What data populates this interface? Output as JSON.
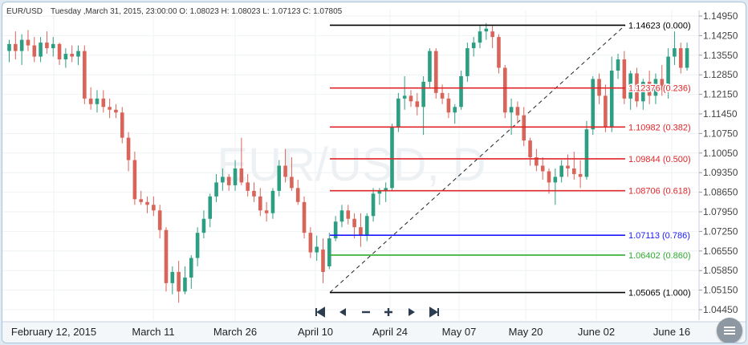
{
  "header": {
    "symbol": "EUR/USD",
    "info": "Tuesday ,March 31, 2015, 23:00:00",
    "o_label": "O:",
    "o_value": "1.08023",
    "h_label": "H:",
    "h_value": "1.08023",
    "l_label": "L:",
    "l_value": "1.07123",
    "c_label": "C:",
    "c_value": "1.07805"
  },
  "watermark": "EUR/USD, D",
  "toolbar": [
    {
      "name": "first-bar-button",
      "glyph": "⏮"
    },
    {
      "name": "scroll-left-button",
      "glyph": "◀"
    },
    {
      "name": "zoom-out-button",
      "glyph": "−"
    },
    {
      "name": "zoom-in-button",
      "glyph": "+"
    },
    {
      "name": "scroll-right-button",
      "glyph": "▶"
    },
    {
      "name": "last-bar-button",
      "glyph": "⏭"
    }
  ],
  "colors": {
    "up": "#2e9e82",
    "down": "#d9655a",
    "fib_mid": "#e0262a",
    "fib_786": "#1a1aff",
    "fib_860": "#2eab2e",
    "fib_edge": "#000000",
    "grid": "#eef2f6",
    "axis_text": "#444444"
  },
  "chart_data": {
    "type": "candlestick",
    "symbol": "EUR/USD",
    "timeframe": "D",
    "ylim": [
      1.0415,
      1.1515
    ],
    "y_ticks": [
      "1.14950",
      "1.14250",
      "1.13550",
      "1.12850",
      "1.12150",
      "1.11450",
      "1.10750",
      "1.10050",
      "1.09350",
      "1.08650",
      "1.07950",
      "1.07250",
      "1.06550",
      "1.05850",
      "1.05150",
      "1.04450"
    ],
    "x_ticks": [
      "February 12, 2015",
      "March 11",
      "March 26",
      "April 10",
      "April 24",
      "May 07",
      "May 20",
      "June 02",
      "June 16"
    ],
    "fibonacci": [
      {
        "price": 1.14623,
        "label": "1.14623 (0.000)",
        "ratio": 0
      },
      {
        "price": 1.12376,
        "label": "1.12376 (0.236)",
        "ratio": 0.236
      },
      {
        "price": 1.10982,
        "label": "1.10982 (0.382)",
        "ratio": 0.382
      },
      {
        "price": 1.09844,
        "label": "1.09844 (0.500)",
        "ratio": 0.5
      },
      {
        "price": 1.08706,
        "label": "1.08706 (0.618)",
        "ratio": 0.618
      },
      {
        "price": 1.07113,
        "label": "1.07113 (0.786)",
        "ratio": 0.786
      },
      {
        "price": 1.06402,
        "label": "1.06402 (0.860)",
        "ratio": 0.86
      },
      {
        "price": 1.05065,
        "label": "1.05065 (1.000)",
        "ratio": 1
      }
    ],
    "fib_trendline": {
      "from_price": 1.05065,
      "to_price": 1.14623
    },
    "candles": [
      [
        1.137,
        1.141,
        1.133,
        1.1395
      ],
      [
        1.1395,
        1.144,
        1.134,
        1.137
      ],
      [
        1.137,
        1.143,
        1.132,
        1.141
      ],
      [
        1.141,
        1.1445,
        1.137,
        1.139
      ],
      [
        1.139,
        1.142,
        1.133,
        1.135
      ],
      [
        1.135,
        1.142,
        1.133,
        1.14
      ],
      [
        1.14,
        1.144,
        1.136,
        1.138
      ],
      [
        1.138,
        1.142,
        1.135,
        1.1395
      ],
      [
        1.1395,
        1.14,
        1.132,
        1.134
      ],
      [
        1.134,
        1.138,
        1.131,
        1.136
      ],
      [
        1.136,
        1.139,
        1.133,
        1.135
      ],
      [
        1.135,
        1.139,
        1.132,
        1.137
      ],
      [
        1.137,
        1.139,
        1.118,
        1.12
      ],
      [
        1.12,
        1.124,
        1.116,
        1.118
      ],
      [
        1.118,
        1.123,
        1.115,
        1.12
      ],
      [
        1.12,
        1.123,
        1.115,
        1.117
      ],
      [
        1.117,
        1.12,
        1.113,
        1.116
      ],
      [
        1.116,
        1.118,
        1.113,
        1.115
      ],
      [
        1.115,
        1.117,
        1.104,
        1.106
      ],
      [
        1.106,
        1.108,
        1.094,
        1.098
      ],
      [
        1.098,
        1.101,
        1.082,
        1.084
      ],
      [
        1.084,
        1.087,
        1.082,
        1.083
      ],
      [
        1.083,
        1.085,
        1.079,
        1.082
      ],
      [
        1.082,
        1.085,
        1.078,
        1.08
      ],
      [
        1.08,
        1.082,
        1.07,
        1.073
      ],
      [
        1.073,
        1.074,
        1.051,
        1.054
      ],
      [
        1.054,
        1.06,
        1.05,
        1.058
      ],
      [
        1.058,
        1.062,
        1.047,
        1.051
      ],
      [
        1.051,
        1.06,
        1.05,
        1.056
      ],
      [
        1.056,
        1.064,
        1.052,
        1.063
      ],
      [
        1.063,
        1.074,
        1.06,
        1.072
      ],
      [
        1.072,
        1.08,
        1.07,
        1.077
      ],
      [
        1.077,
        1.086,
        1.074,
        1.085
      ],
      [
        1.085,
        1.093,
        1.083,
        1.09
      ],
      [
        1.09,
        1.095,
        1.087,
        1.092
      ],
      [
        1.092,
        1.093,
        1.087,
        1.089
      ],
      [
        1.089,
        1.098,
        1.087,
        1.095
      ],
      [
        1.095,
        1.106,
        1.089,
        1.09
      ],
      [
        1.09,
        1.093,
        1.085,
        1.087
      ],
      [
        1.087,
        1.09,
        1.083,
        1.085
      ],
      [
        1.085,
        1.088,
        1.078,
        1.08
      ],
      [
        1.08,
        1.083,
        1.076,
        1.079
      ],
      [
        1.079,
        1.088,
        1.077,
        1.087
      ],
      [
        1.087,
        1.098,
        1.085,
        1.096
      ],
      [
        1.096,
        1.102,
        1.09,
        1.092
      ],
      [
        1.092,
        1.099,
        1.087,
        1.088
      ],
      [
        1.088,
        1.091,
        1.082,
        1.083
      ],
      [
        1.083,
        1.085,
        1.07,
        1.072
      ],
      [
        1.072,
        1.074,
        1.063,
        1.065
      ],
      [
        1.065,
        1.071,
        1.062,
        1.067
      ],
      [
        1.066,
        1.07,
        1.054,
        1.058
      ],
      [
        1.06,
        1.072,
        1.059,
        1.07
      ],
      [
        1.07,
        1.078,
        1.069,
        1.076
      ],
      [
        1.076,
        1.082,
        1.074,
        1.08
      ],
      [
        1.08,
        1.082,
        1.075,
        1.077
      ],
      [
        1.077,
        1.079,
        1.07,
        1.074
      ],
      [
        1.074,
        1.079,
        1.067,
        1.071
      ],
      [
        1.071,
        1.079,
        1.069,
        1.078
      ],
      [
        1.078,
        1.088,
        1.076,
        1.086
      ],
      [
        1.086,
        1.088,
        1.082,
        1.087
      ],
      [
        1.087,
        1.09,
        1.083,
        1.088
      ],
      [
        1.088,
        1.111,
        1.087,
        1.11
      ],
      [
        1.11,
        1.122,
        1.108,
        1.12
      ],
      [
        1.12,
        1.128,
        1.116,
        1.121
      ],
      [
        1.121,
        1.123,
        1.117,
        1.119
      ],
      [
        1.119,
        1.122,
        1.114,
        1.117
      ],
      [
        1.117,
        1.128,
        1.107,
        1.126
      ],
      [
        1.126,
        1.138,
        1.124,
        1.137
      ],
      [
        1.137,
        1.138,
        1.12,
        1.122
      ],
      [
        1.122,
        1.125,
        1.118,
        1.12
      ],
      [
        1.12,
        1.122,
        1.113,
        1.115
      ],
      [
        1.115,
        1.118,
        1.111,
        1.117
      ],
      [
        1.117,
        1.13,
        1.116,
        1.128
      ],
      [
        1.128,
        1.14,
        1.126,
        1.138
      ],
      [
        1.138,
        1.142,
        1.135,
        1.14
      ],
      [
        1.14,
        1.146,
        1.138,
        1.144
      ],
      [
        1.144,
        1.147,
        1.141,
        1.145
      ],
      [
        1.144,
        1.146,
        1.138,
        1.142
      ],
      [
        1.142,
        1.143,
        1.129,
        1.131
      ],
      [
        1.131,
        1.132,
        1.113,
        1.115
      ],
      [
        1.115,
        1.12,
        1.107,
        1.117
      ],
      [
        1.117,
        1.119,
        1.111,
        1.114
      ],
      [
        1.114,
        1.117,
        1.103,
        1.105
      ],
      [
        1.105,
        1.106,
        1.096,
        1.099
      ],
      [
        1.099,
        1.102,
        1.094,
        1.096
      ],
      [
        1.096,
        1.099,
        1.091,
        1.094
      ],
      [
        1.094,
        1.095,
        1.086,
        1.09
      ],
      [
        1.09,
        1.095,
        1.082,
        1.092
      ],
      [
        1.092,
        1.098,
        1.09,
        1.096
      ],
      [
        1.096,
        1.1,
        1.092,
        1.095
      ],
      [
        1.095,
        1.101,
        1.091,
        1.093
      ],
      [
        1.093,
        1.098,
        1.088,
        1.092
      ],
      [
        1.092,
        1.112,
        1.091,
        1.109
      ],
      [
        1.109,
        1.128,
        1.107,
        1.127
      ],
      [
        1.127,
        1.129,
        1.118,
        1.121
      ],
      [
        1.121,
        1.125,
        1.108,
        1.11
      ],
      [
        1.11,
        1.135,
        1.108,
        1.13
      ],
      [
        1.13,
        1.136,
        1.127,
        1.134
      ],
      [
        1.134,
        1.137,
        1.118,
        1.12
      ],
      [
        1.12,
        1.13,
        1.116,
        1.129
      ],
      [
        1.129,
        1.131,
        1.117,
        1.119
      ],
      [
        1.119,
        1.127,
        1.116,
        1.126
      ],
      [
        1.126,
        1.13,
        1.118,
        1.121
      ],
      [
        1.121,
        1.129,
        1.118,
        1.127
      ],
      [
        1.127,
        1.132,
        1.121,
        1.123
      ],
      [
        1.123,
        1.138,
        1.12,
        1.135
      ],
      [
        1.135,
        1.144,
        1.132,
        1.138
      ],
      [
        1.138,
        1.14,
        1.129,
        1.131
      ],
      [
        1.131,
        1.14,
        1.13,
        1.138
      ]
    ]
  }
}
